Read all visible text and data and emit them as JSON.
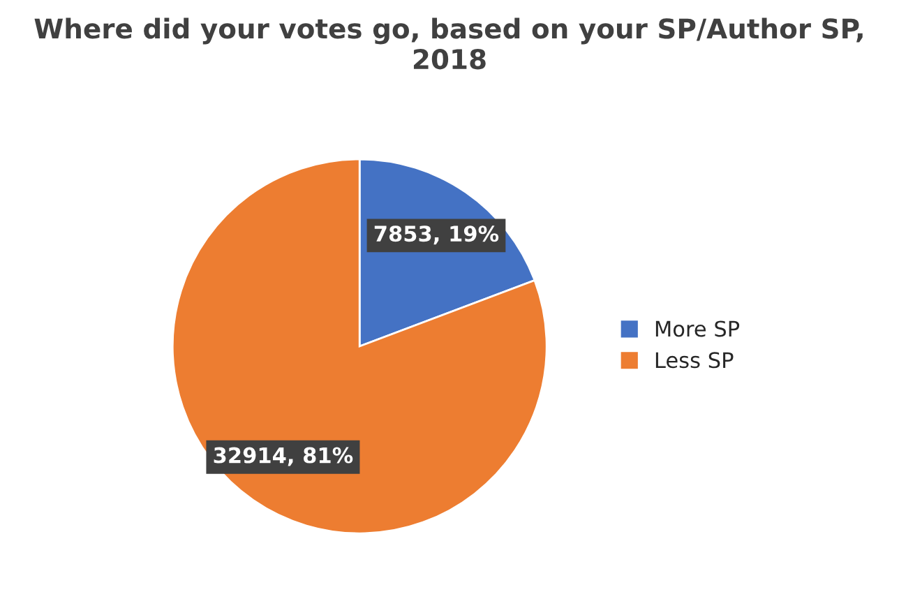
{
  "chart_data": {
    "type": "pie",
    "title": "Where did your votes go, based on your SP/Author SP, 2018",
    "categories": [
      "More SP",
      "Less SP"
    ],
    "values": [
      7853,
      32914
    ],
    "value_labels": [
      "7853, 19%",
      "32914, 81%"
    ],
    "colors": [
      "#4472c4",
      "#ed7d31"
    ],
    "legend": "right"
  }
}
